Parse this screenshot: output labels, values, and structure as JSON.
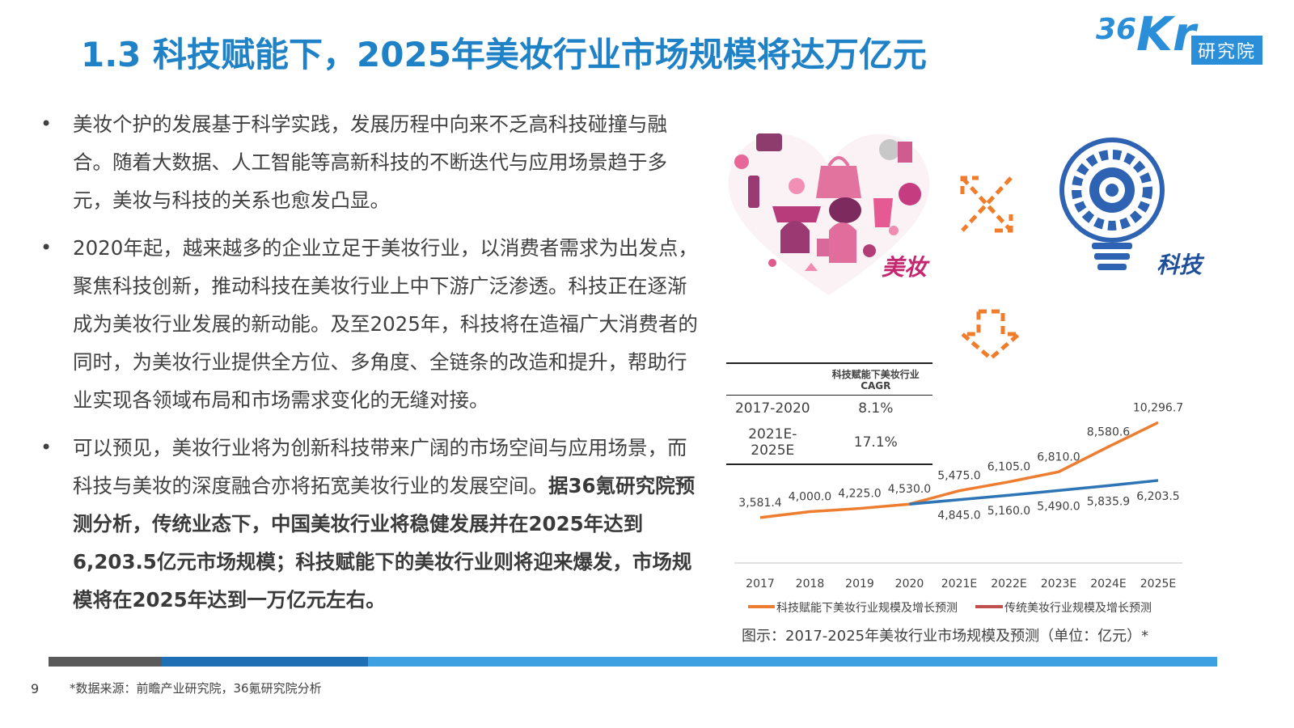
{
  "title": "1.3 科技赋能下，2025年美妆行业市场规模将达万亿元",
  "logo": {
    "brand_36": "36",
    "brand_kr": "Kr",
    "tag": "研究院"
  },
  "bullets": [
    {
      "text": "美妆个护的发展基于科学实践，发展历程中向来不乏高科技碰撞与融合。随着大数据、人工智能等高新科技的不断迭代与应用场景趋于多元，美妆与科技的关系也愈发凸显。",
      "bold": ""
    },
    {
      "text": "2020年起，越来越多的企业立足于美妆行业，以消费者需求为出发点，聚焦科技创新，推动科技在美妆行业上中下游广泛渗透。科技正在逐渐成为美妆行业发展的新动能。及至2025年，科技将在造福广大消费者的同时，为美妆行业提供全方位、多角度、全链条的改造和提升，帮助行业实现各领域布局和市场需求变化的无缝对接。",
      "bold": ""
    },
    {
      "text": "可以预见，美妆行业将为创新科技带来广阔的市场空间与应用场景，而科技与美妆的深度融合亦将拓宽美妆行业的发展空间。",
      "bold": "据36氪研究院预测分析，传统业态下，中国美妆行业将稳健发展并在2025年达到6,203.5亿元市场规模；科技赋能下的美妆行业则将迎来爆发，市场规模将在2025年达到一万亿元左右。"
    }
  ],
  "illustration": {
    "beauty_label": "美妆",
    "tech_label": "科技"
  },
  "cagr_table": {
    "header": "科技赋能下美妆行业CAGR",
    "rows": [
      {
        "period": "2017-2020",
        "value": "8.1%"
      },
      {
        "period": "2021E-2025E",
        "value": "17.1%"
      }
    ]
  },
  "chart_data": {
    "type": "line",
    "categories": [
      "2017",
      "2018",
      "2019",
      "2020",
      "2021E",
      "2022E",
      "2023E",
      "2024E",
      "2025E"
    ],
    "series": [
      {
        "name": "科技赋能下美妆行业规模及增长预测",
        "color": "#ed7d31",
        "values": [
          3581.4,
          4000.0,
          4225.0,
          4530.0,
          5475.0,
          6105.0,
          6810.0,
          8580.6,
          10296.7
        ],
        "labels": [
          "3,581.4",
          "4,000.0",
          "4,225.0",
          "4,530.0",
          "5,475.0",
          "6,105.0",
          "6,810.0",
          "8,580.6",
          "10,296.7"
        ]
      },
      {
        "name": "传统美妆行业规模及增长预测",
        "color": "#2e75b6",
        "legend_color": "#c0504d",
        "values": [
          null,
          null,
          null,
          4530.0,
          4845.0,
          5160.0,
          5490.0,
          5835.9,
          6203.5
        ],
        "labels": [
          "",
          "",
          "",
          "",
          "4,845.0",
          "5,160.0",
          "5,490.0",
          "5,835.9",
          "6,203.5"
        ]
      }
    ],
    "ylim": [
      0,
      11000
    ],
    "grid": false
  },
  "caption": "图示：2017-2025年美妆行业市场规模及预测（单位：亿元）*",
  "footer": {
    "page": "9",
    "source": "*数据来源：前瞻产业研究院，36氪研究院分析"
  }
}
